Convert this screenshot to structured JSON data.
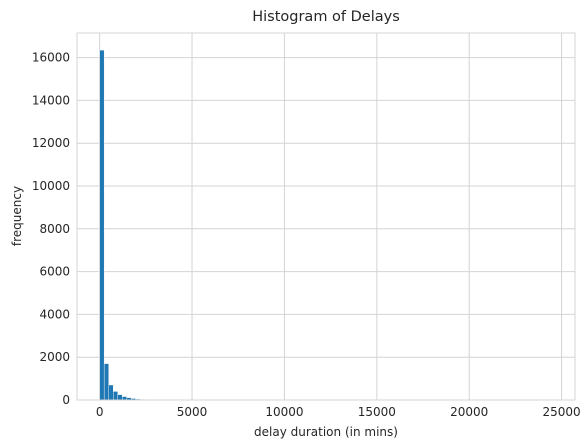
{
  "chart_data": {
    "type": "bar",
    "title": "Histogram of Delays",
    "xlabel": "delay duration (in mins)",
    "ylabel": "frequency",
    "xlim": [
      -1225,
      25725
    ],
    "ylim": [
      0,
      17150
    ],
    "x_ticks": [
      0,
      5000,
      10000,
      15000,
      20000,
      25000
    ],
    "y_ticks": [
      0,
      2000,
      4000,
      6000,
      8000,
      10000,
      12000,
      14000,
      16000
    ],
    "grid": true,
    "bin_width": 245,
    "bin_start": 0,
    "values": [
      16350,
      1700,
      700,
      400,
      250,
      160,
      110,
      70,
      45,
      30,
      20,
      12,
      8,
      5,
      3,
      2
    ],
    "color": "#1f77b4"
  }
}
